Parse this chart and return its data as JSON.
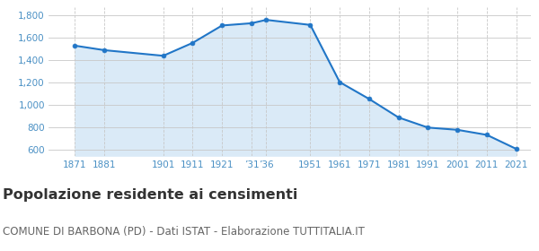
{
  "years": [
    1871,
    1881,
    1901,
    1911,
    1921,
    1931,
    1936,
    1951,
    1961,
    1971,
    1981,
    1991,
    2001,
    2011,
    2021
  ],
  "population": [
    1530,
    1490,
    1440,
    1555,
    1710,
    1730,
    1760,
    1715,
    1205,
    1055,
    890,
    800,
    780,
    735,
    610
  ],
  "ylim": [
    550,
    1870
  ],
  "yticks": [
    600,
    800,
    1000,
    1200,
    1400,
    1600,
    1800
  ],
  "xlim": [
    1862,
    2026
  ],
  "x_tick_positions": [
    1871,
    1881,
    1901,
    1911,
    1921,
    1931,
    1936,
    1951,
    1961,
    1971,
    1981,
    1991,
    2001,
    2011,
    2021
  ],
  "x_tick_labels": [
    "1871",
    "1881",
    "1901",
    "1911",
    "1921",
    "’31",
    "’36",
    "1951",
    "1961",
    "1971",
    "1981",
    "1991",
    "2001",
    "2011",
    "2021"
  ],
  "line_color": "#2176c7",
  "fill_color": "#daeaf7",
  "marker_size": 3.5,
  "linewidth": 1.5,
  "title": "Popolazione residente ai censimenti",
  "subtitle": "COMUNE DI BARBONA (PD) - Dati ISTAT - Elaborazione TUTTITALIA.IT",
  "title_fontsize": 11.5,
  "subtitle_fontsize": 8.5,
  "bg_color": "#ffffff",
  "grid_color_h": "#c8c8c8",
  "grid_color_v": "#c8c8c8",
  "tick_color": "#4a90c4",
  "tick_fontsize": 7.5,
  "title_color": "#333333",
  "subtitle_color": "#666666"
}
